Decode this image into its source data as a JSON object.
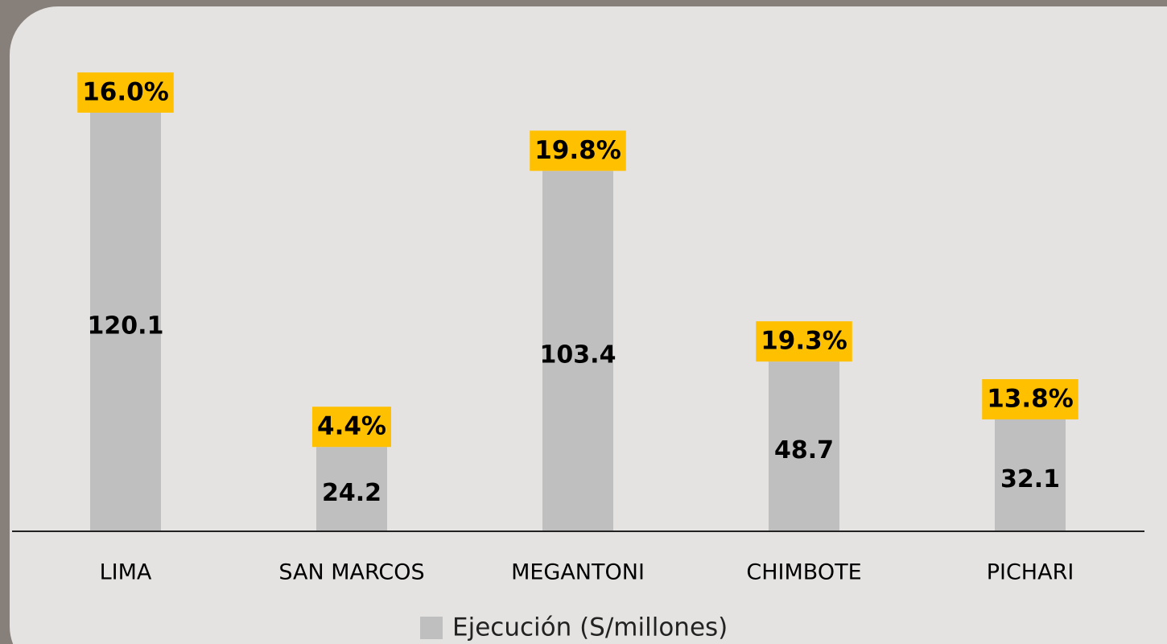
{
  "chart_data": {
    "type": "bar",
    "categories": [
      "LIMA",
      "SAN MARCOS",
      "MEGANTONI",
      "CHIMBOTE",
      "PICHARI"
    ],
    "series": [
      {
        "name": "Ejecución (S/millones)",
        "color": "#bfbfbf",
        "values": [
          120.1,
          24.2,
          103.4,
          48.7,
          32.1
        ]
      }
    ],
    "annotations": [
      "16.0%",
      "4.4%",
      "19.8%",
      "19.3%",
      "13.8%"
    ],
    "annotation_color": "#ffc000"
  }
}
